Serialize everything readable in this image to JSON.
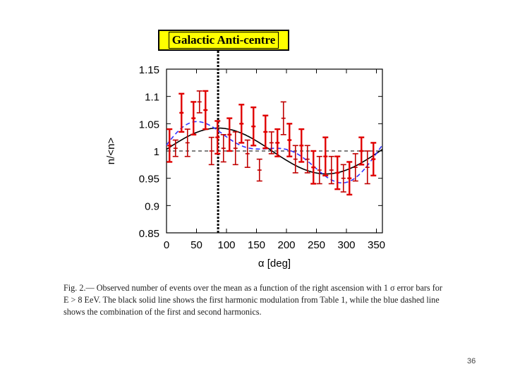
{
  "slide": {
    "label": "Galactic Anti-centre",
    "caption_fig": "Fig. 2.—",
    "caption_text": "Observed number of events over the mean as a function of the right ascension with 1 σ error bars for E > 8 EeV. The black solid line shows the first harmonic modulation from Table 1, while the blue dashed line shows the combination of the first and second harmonics.",
    "page_number": "36"
  },
  "chart_data": {
    "type": "scatter",
    "xlabel": "α [deg]",
    "ylabel": "n/<n>",
    "xlim": [
      0,
      360
    ],
    "ylim": [
      0.85,
      1.15
    ],
    "xticks": [
      "0",
      "50",
      "100",
      "150",
      "200",
      "250",
      "300",
      "350"
    ],
    "yticks": [
      "1.15",
      "1.1",
      "1.05",
      "1",
      "0.95",
      "0.9",
      "0.85"
    ],
    "reference_line": 1.0,
    "anticentre_ra": 86,
    "series": [
      {
        "style": "points",
        "x": [
          5,
          25,
          45,
          65,
          85,
          105,
          125,
          145,
          165,
          185,
          205,
          225,
          245,
          265,
          285,
          305,
          325,
          345
        ],
        "y": [
          1.01,
          1.07,
          1.06,
          1.075,
          1.025,
          1.03,
          1.05,
          1.045,
          1.035,
          1.015,
          1.02,
          1.01,
          0.97,
          0.99,
          0.96,
          0.95,
          1.0,
          0.985
        ],
        "err": [
          0.03,
          0.035,
          0.03,
          0.035,
          0.03,
          0.03,
          0.035,
          0.035,
          0.03,
          0.025,
          0.03,
          0.03,
          0.03,
          0.035,
          0.03,
          0.03,
          0.025,
          0.03
        ]
      },
      {
        "style": "points",
        "x": [
          15,
          35,
          55,
          75,
          95,
          115,
          135,
          155,
          175,
          195,
          215,
          235,
          255,
          275,
          295,
          315,
          335
        ],
        "y": [
          1.005,
          1.015,
          1.09,
          1.0,
          1.005,
          1.005,
          0.995,
          0.965,
          1.015,
          1.06,
          0.985,
          0.985,
          0.965,
          0.965,
          0.95,
          0.97,
          0.97
        ],
        "err": [
          0.015,
          0.025,
          0.02,
          0.025,
          0.025,
          0.03,
          0.025,
          0.02,
          0.02,
          0.03,
          0.025,
          0.025,
          0.025,
          0.025,
          0.025,
          0.025,
          0.03
        ]
      },
      {
        "style": "first-harmonic",
        "amplitude": 0.042,
        "phase_deg": 86,
        "color": "#000000"
      },
      {
        "style": "first-and-second-harmonics",
        "amplitude1": 0.042,
        "phase1_deg": 86,
        "amplitude2": 0.023,
        "phase2_deg": 35,
        "color": "#3333ff"
      }
    ],
    "colors": {
      "error_bars": "#e00000",
      "dark_points": "#c00000"
    }
  }
}
